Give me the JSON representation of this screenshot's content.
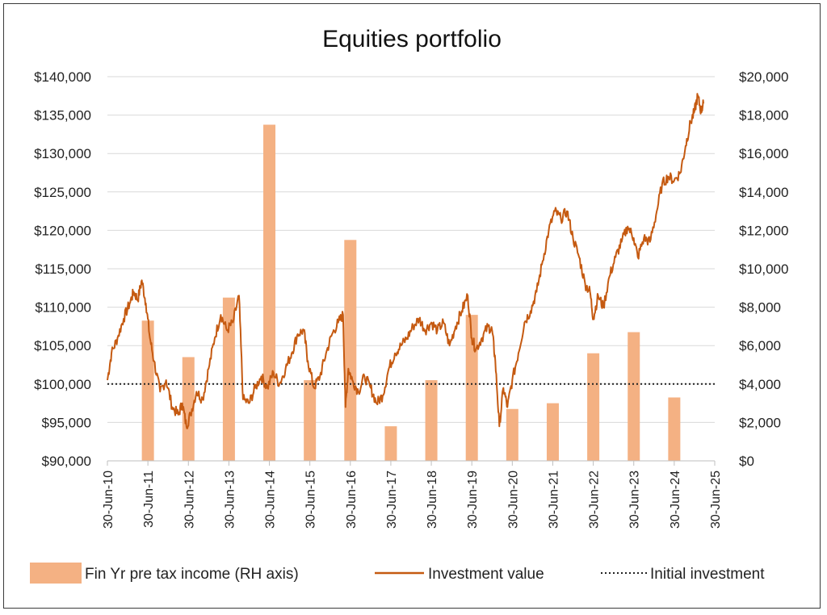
{
  "chart_data": {
    "type": "bar+line",
    "title": "Equities portfolio",
    "left_axis": {
      "ticks": [
        "$90,000",
        "$95,000",
        "$100,000",
        "$105,000",
        "$110,000",
        "$115,000",
        "$120,000",
        "$125,000",
        "$130,000",
        "$135,000",
        "$140,000"
      ],
      "ylim": [
        90000,
        140000
      ]
    },
    "right_axis": {
      "ticks": [
        "$0",
        "$2,000",
        "$4,000",
        "$6,000",
        "$8,000",
        "$10,000",
        "$12,000",
        "$14,000",
        "$16,000",
        "$18,000",
        "$20,000"
      ],
      "ylim": [
        0,
        20000
      ]
    },
    "x_ticks": [
      "30-Jun-10",
      "30-Jun-11",
      "30-Jun-12",
      "30-Jun-13",
      "30-Jun-14",
      "30-Jun-15",
      "30-Jun-16",
      "30-Jun-17",
      "30-Jun-18",
      "30-Jun-19",
      "30-Jun-20",
      "30-Jun-21",
      "30-Jun-22",
      "30-Jun-23",
      "30-Jun-24",
      "30-Jun-25"
    ],
    "grid": true,
    "legend_position": "bottom",
    "bar_series": {
      "name": "Fin Yr pre tax income (RH axis)",
      "color": "#F4B183",
      "categories": [
        "30-Jun-11",
        "30-Jun-12",
        "30-Jun-13",
        "30-Jun-14",
        "30-Jun-15",
        "30-Jun-16",
        "30-Jun-17",
        "30-Jun-18",
        "30-Jun-19",
        "30-Jun-20",
        "30-Jun-21",
        "30-Jun-22",
        "30-Jun-23",
        "30-Jun-24"
      ],
      "values": [
        7300,
        5400,
        8500,
        17500,
        4200,
        11500,
        1800,
        4200,
        7600,
        2700,
        3000,
        5600,
        6700,
        3300
      ]
    },
    "line_series": {
      "name": "Investment value",
      "color": "#C55A11",
      "points": [
        [
          2010.5,
          100500
        ],
        [
          2010.6,
          104000
        ],
        [
          2010.75,
          106000
        ],
        [
          2010.9,
          108500
        ],
        [
          2011.05,
          110500
        ],
        [
          2011.15,
          112000
        ],
        [
          2011.25,
          111000
        ],
        [
          2011.35,
          113500
        ],
        [
          2011.45,
          110500
        ],
        [
          2011.55,
          106000
        ],
        [
          2011.65,
          103000
        ],
        [
          2011.8,
          99000
        ],
        [
          2011.95,
          100500
        ],
        [
          2012.1,
          97000
        ],
        [
          2012.25,
          96000
        ],
        [
          2012.35,
          97500
        ],
        [
          2012.45,
          94500
        ],
        [
          2012.55,
          96000
        ],
        [
          2012.7,
          99000
        ],
        [
          2012.85,
          98000
        ],
        [
          2013.0,
          102000
        ],
        [
          2013.15,
          106000
        ],
        [
          2013.3,
          109000
        ],
        [
          2013.45,
          107000
        ],
        [
          2013.6,
          108000
        ],
        [
          2013.75,
          111500
        ],
        [
          2013.85,
          98000
        ],
        [
          2014.0,
          97500
        ],
        [
          2014.15,
          99500
        ],
        [
          2014.3,
          101000
        ],
        [
          2014.45,
          99500
        ],
        [
          2014.6,
          101500
        ],
        [
          2014.75,
          100000
        ],
        [
          2014.9,
          102000
        ],
        [
          2015.05,
          104000
        ],
        [
          2015.2,
          106500
        ],
        [
          2015.35,
          107000
        ],
        [
          2015.45,
          103000
        ],
        [
          2015.6,
          99500
        ],
        [
          2015.75,
          101000
        ],
        [
          2015.9,
          104000
        ],
        [
          2016.05,
          106500
        ],
        [
          2016.2,
          108000
        ],
        [
          2016.32,
          109000
        ],
        [
          2016.38,
          97000
        ],
        [
          2016.45,
          102000
        ],
        [
          2016.55,
          100500
        ],
        [
          2016.7,
          99000
        ],
        [
          2016.85,
          101000
        ],
        [
          2017.0,
          99500
        ],
        [
          2017.15,
          97500
        ],
        [
          2017.3,
          98500
        ],
        [
          2017.45,
          102000
        ],
        [
          2017.6,
          104000
        ],
        [
          2017.75,
          105000
        ],
        [
          2017.9,
          106000
        ],
        [
          2018.05,
          107500
        ],
        [
          2018.2,
          108500
        ],
        [
          2018.35,
          107000
        ],
        [
          2018.5,
          108000
        ],
        [
          2018.65,
          107000
        ],
        [
          2018.8,
          108000
        ],
        [
          2018.95,
          105000
        ],
        [
          2019.1,
          107500
        ],
        [
          2019.25,
          109500
        ],
        [
          2019.4,
          111500
        ],
        [
          2019.5,
          106000
        ],
        [
          2019.6,
          104500
        ],
        [
          2019.75,
          106000
        ],
        [
          2019.9,
          107500
        ],
        [
          2020.0,
          107000
        ],
        [
          2020.08,
          103000
        ],
        [
          2020.18,
          94500
        ],
        [
          2020.28,
          99500
        ],
        [
          2020.38,
          97000
        ],
        [
          2020.5,
          100500
        ],
        [
          2020.65,
          104000
        ],
        [
          2020.8,
          108000
        ],
        [
          2020.95,
          109500
        ],
        [
          2021.1,
          112000
        ],
        [
          2021.25,
          116000
        ],
        [
          2021.4,
          120000
        ],
        [
          2021.55,
          122500
        ],
        [
          2021.7,
          121500
        ],
        [
          2021.85,
          122500
        ],
        [
          2022.0,
          119000
        ],
        [
          2022.15,
          116500
        ],
        [
          2022.3,
          113000
        ],
        [
          2022.42,
          112000
        ],
        [
          2022.5,
          108500
        ],
        [
          2022.62,
          111500
        ],
        [
          2022.75,
          110000
        ],
        [
          2022.9,
          114000
        ],
        [
          2023.05,
          116500
        ],
        [
          2023.2,
          118500
        ],
        [
          2023.35,
          120500
        ],
        [
          2023.5,
          119000
        ],
        [
          2023.6,
          116500
        ],
        [
          2023.75,
          119000
        ],
        [
          2023.9,
          118500
        ],
        [
          2024.05,
          122000
        ],
        [
          2024.2,
          126000
        ],
        [
          2024.35,
          127000
        ],
        [
          2024.5,
          126500
        ],
        [
          2024.65,
          127500
        ],
        [
          2024.78,
          131000
        ],
        [
          2024.9,
          134000
        ],
        [
          2025.0,
          135500
        ],
        [
          2025.08,
          137500
        ],
        [
          2025.16,
          135500
        ],
        [
          2025.22,
          136500
        ]
      ]
    },
    "reference_line": {
      "name": "Initial investment",
      "value": 100000,
      "color": "#222222"
    }
  }
}
